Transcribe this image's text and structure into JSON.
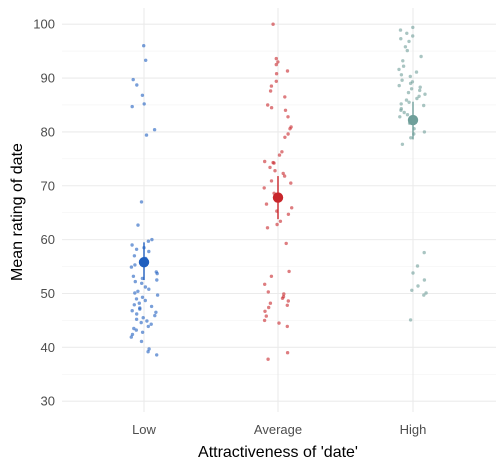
{
  "chart_data": {
    "type": "scatter",
    "xlabel": "Attractiveness of 'date'",
    "ylabel": "Mean rating of date",
    "categories": [
      "Low",
      "Average",
      "High"
    ],
    "ylim": [
      28,
      103
    ],
    "yticks": [
      30,
      40,
      50,
      60,
      70,
      80,
      90,
      100
    ],
    "grid": true,
    "colors": {
      "Low": "#1f5fbf",
      "Average": "#c8262b",
      "High": "#6f9f9a"
    },
    "summary": [
      {
        "category": "Low",
        "mean": 55.8,
        "ci": [
          52.5,
          59.5
        ]
      },
      {
        "category": "Average",
        "mean": 67.8,
        "ci": [
          63.8,
          71.8
        ]
      },
      {
        "category": "High",
        "mean": 82.2,
        "ci": [
          78.6,
          85.6
        ]
      }
    ],
    "points": [
      {
        "category": "Low",
        "values": [
          96,
          93.3,
          89.7,
          88.7,
          86.8,
          85.2,
          84.7,
          80.4,
          79.4,
          67.0,
          62.7,
          60.0,
          59.7,
          59.0,
          58.5,
          58.2,
          57.8,
          57.0,
          56.5,
          55.9,
          55.3,
          54.9,
          54.0,
          53.7,
          53.2,
          52.8,
          52.5,
          52.2,
          51.9,
          51.2,
          50.8,
          50.4,
          50.1,
          49.7,
          49.3,
          49.0,
          48.7,
          48.2,
          47.9,
          47.6,
          47.3,
          47.1,
          46.8,
          46.5,
          46.2,
          45.9,
          45.5,
          45.2,
          44.9,
          44.6,
          44.3,
          43.9,
          43.5,
          43.2,
          42.8,
          42.4,
          41.9,
          41.1,
          39.7,
          39.2,
          38.6
        ]
      },
      {
        "category": "Average",
        "values": [
          100,
          93.6,
          93.0,
          92.5,
          91.3,
          90.8,
          89.4,
          88.5,
          87.6,
          86.5,
          85.0,
          84.5,
          84.0,
          82.8,
          80.9,
          80.6,
          79.6,
          79.0,
          76.3,
          75.7,
          74.5,
          74.3,
          74.2,
          73.4,
          72.8,
          72.3,
          71.8,
          70.9,
          70.5,
          69.6,
          68.6,
          67.8,
          67.2,
          66.6,
          65.9,
          65.3,
          64.7,
          63.4,
          62.8,
          62.2,
          59.3,
          54.1,
          53.2,
          51.7,
          50.3,
          49.9,
          49.4,
          49.1,
          48.6,
          48.2,
          47.8,
          47.4,
          46.7,
          45.8,
          45.0,
          44.5,
          43.9,
          39.0,
          37.8
        ]
      },
      {
        "category": "High",
        "values": [
          99.4,
          98.9,
          98.3,
          97.8,
          97.3,
          96.8,
          95.8,
          95.1,
          94.0,
          93.2,
          92.2,
          91.6,
          91.1,
          90.6,
          90.3,
          89.6,
          89.3,
          89.0,
          88.6,
          88.3,
          88.0,
          87.7,
          87.3,
          87.0,
          86.6,
          86.2,
          85.9,
          85.5,
          85.2,
          84.9,
          84.3,
          84.0,
          83.6,
          83.2,
          82.8,
          82.4,
          82.0,
          81.6,
          80.6,
          80.0,
          79.6,
          78.9,
          77.7,
          57.6,
          55.1,
          53.8,
          52.5,
          51.4,
          50.6,
          50.1,
          49.7,
          45.1
        ]
      }
    ]
  }
}
